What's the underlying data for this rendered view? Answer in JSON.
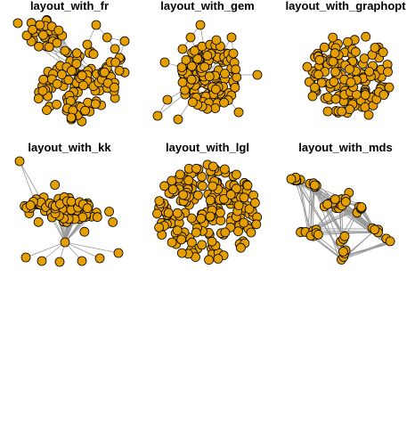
{
  "colors": {
    "node_fill": "#E69F00",
    "node_stroke": "#000000",
    "edge": "#999999",
    "background": "#FFFFFF"
  },
  "panels": [
    {
      "title": "layout_with_fr"
    },
    {
      "title": "layout_with_gem"
    },
    {
      "title": "layout_with_graphopt"
    },
    {
      "title": "layout_with_kk"
    },
    {
      "title": "layout_with_lgl"
    },
    {
      "title": "layout_with_mds"
    }
  ]
}
